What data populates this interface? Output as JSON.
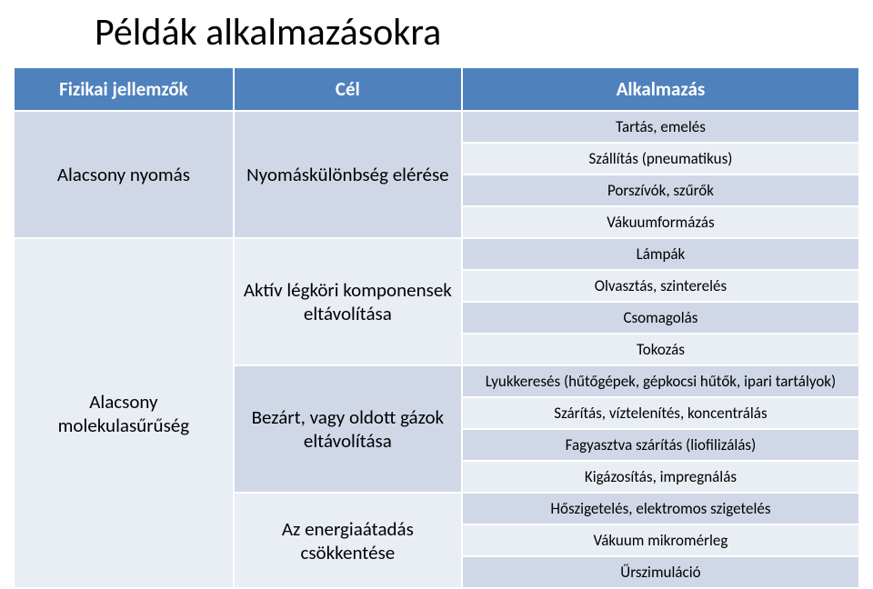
{
  "title": "Példák alkalmazásokra",
  "headers": {
    "c1": "Fizikai jellemzők",
    "c2": "Cél",
    "c3": "Alkalmazás"
  },
  "col1": {
    "r1": "Alacsony nyomás",
    "r2": "Alacsony molekulasűrűség"
  },
  "col2": {
    "r1": "Nyomáskülönbség elérése",
    "r2": "Aktív légköri komponensek eltávolítása",
    "r3": "Bezárt, vagy oldott gázok eltávolítása",
    "r4": "Az energiaátadás csökkentése"
  },
  "col3": {
    "a0": "Tartás, emelés",
    "a1": "Szállítás (pneumatikus)",
    "a2": "Porszívók, szűrők",
    "a3": "Vákuumformázás",
    "a4": "Lámpák",
    "a5": "Olvasztás, szinterelés",
    "a6": "Csomagolás",
    "a7": "Tokozás",
    "a8": "Lyukkeresés (hűtőgépek, gépkocsi hűtők, ipari tartályok)",
    "a9": "Szárítás, víztelenítés, koncentrálás",
    "a10": "Fagyasztva szárítás (liofilizálás)",
    "a11": "Kigázosítás, impregnálás",
    "a12": "Hőszigetelés, elektromos szigetelés",
    "a13": "Vákuum mikromérleg",
    "a14": "Űrszimuláció"
  },
  "colors": {
    "header_bg": "#4f81bd",
    "header_fg": "#ffffff",
    "band1": "#d0d8e8",
    "band2": "#e9edf4",
    "border": "#ffffff"
  }
}
